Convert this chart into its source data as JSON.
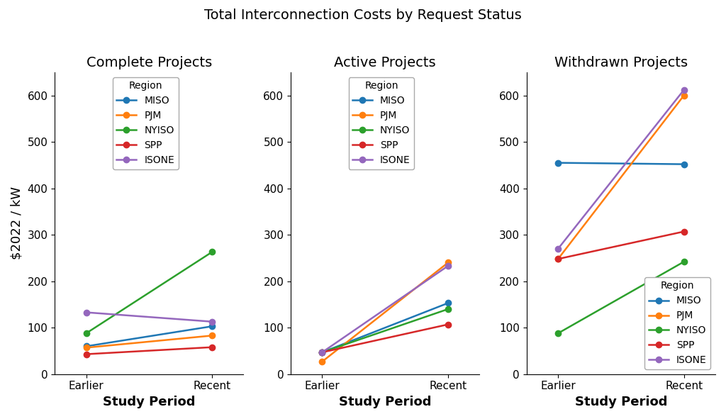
{
  "title": "Total Interconnection Costs by Request Status",
  "panels": [
    {
      "title": "Complete Projects",
      "xlabel": "Study Period",
      "ylabel": "$2022 / kW",
      "xticklabels": [
        "Earlier",
        "Recent"
      ],
      "series": [
        {
          "label": "MISO",
          "color": "#1f77b4",
          "values": [
            60,
            103
          ]
        },
        {
          "label": "PJM",
          "color": "#ff7f0e",
          "values": [
            57,
            83
          ]
        },
        {
          "label": "NYISO",
          "color": "#2ca02c",
          "values": [
            88,
            263
          ]
        },
        {
          "label": "SPP",
          "color": "#d62728",
          "values": [
            43,
            58
          ]
        },
        {
          "label": "ISONE",
          "color": "#9467bd",
          "values": [
            133,
            113
          ]
        }
      ],
      "ylim": [
        0,
        650
      ],
      "yticks": [
        0,
        100,
        200,
        300,
        400,
        500,
        600
      ],
      "legend_loc": "upper left",
      "legend_inside": true
    },
    {
      "title": "Active Projects",
      "xlabel": "Study Period",
      "ylabel": "",
      "xticklabels": [
        "Earlier",
        "Recent"
      ],
      "series": [
        {
          "label": "MISO",
          "color": "#1f77b4",
          "values": [
            47,
            153
          ]
        },
        {
          "label": "PJM",
          "color": "#ff7f0e",
          "values": [
            27,
            240
          ]
        },
        {
          "label": "NYISO",
          "color": "#2ca02c",
          "values": [
            47,
            140
          ]
        },
        {
          "label": "SPP",
          "color": "#d62728",
          "values": [
            47,
            107
          ]
        },
        {
          "label": "ISONE",
          "color": "#9467bd",
          "values": [
            47,
            233
          ]
        }
      ],
      "ylim": [
        0,
        650
      ],
      "yticks": [
        0,
        100,
        200,
        300,
        400,
        500,
        600
      ],
      "legend_loc": "upper left",
      "legend_inside": true
    },
    {
      "title": "Withdrawn Projects",
      "xlabel": "Study Period",
      "ylabel": "",
      "xticklabels": [
        "Earlier",
        "Recent"
      ],
      "series": [
        {
          "label": "MISO",
          "color": "#1f77b4",
          "values": [
            455,
            452
          ]
        },
        {
          "label": "PJM",
          "color": "#ff7f0e",
          "values": [
            248,
            600
          ]
        },
        {
          "label": "NYISO",
          "color": "#2ca02c",
          "values": [
            88,
            242
          ]
        },
        {
          "label": "SPP",
          "color": "#d62728",
          "values": [
            248,
            307
          ]
        },
        {
          "label": "ISONE",
          "color": "#9467bd",
          "values": [
            270,
            612
          ]
        }
      ],
      "ylim": [
        0,
        650
      ],
      "yticks": [
        0,
        100,
        200,
        300,
        400,
        500,
        600
      ],
      "legend_loc": "lower right",
      "legend_inside": false
    }
  ],
  "background_color": "#ffffff",
  "title_fontsize": 14,
  "panel_title_fontsize": 14,
  "axis_label_fontsize": 13,
  "tick_fontsize": 11,
  "legend_fontsize": 10,
  "legend_title_fontsize": 10,
  "linewidth": 1.8,
  "markersize": 6
}
